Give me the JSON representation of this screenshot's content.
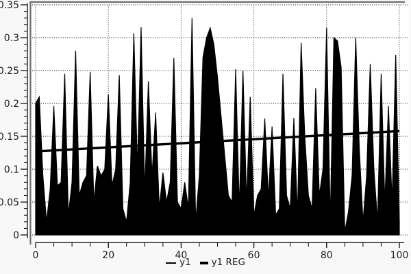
{
  "chart_data": {
    "type": "area",
    "title": "",
    "xlabel": "",
    "ylabel": "",
    "xlim": [
      0,
      100
    ],
    "ylim": [
      0,
      0.35
    ],
    "x_ticks_major": [
      0,
      20,
      40,
      60,
      80,
      100
    ],
    "x_tick_labels": [
      "0",
      "20",
      "40",
      "60",
      "80",
      "100"
    ],
    "x_tick_minor_step": 5,
    "y_ticks_major": [
      0,
      0.05,
      0.1,
      0.15,
      0.2,
      0.25,
      0.3,
      0.35
    ],
    "y_tick_labels": [
      "0",
      "0.05",
      "0.1",
      "0.15",
      "0.2",
      "0.25",
      "0.3",
      "0.35"
    ],
    "y_tick_minor_step": 0.01,
    "grid": "dotted",
    "legend_position": "bottom-center",
    "x_start": 0,
    "x_step": 1,
    "series": [
      {
        "name": "y1",
        "style": "thin-line-filled-area",
        "values": [
          0.2,
          0.21,
          0.09,
          0.02,
          0.07,
          0.196,
          0.075,
          0.08,
          0.245,
          0.03,
          0.08,
          0.28,
          0.06,
          0.08,
          0.09,
          0.248,
          0.05,
          0.105,
          0.09,
          0.1,
          0.214,
          0.075,
          0.1,
          0.243,
          0.04,
          0.02,
          0.08,
          0.307,
          0.1,
          0.316,
          0.065,
          0.234,
          0.09,
          0.186,
          0.04,
          0.095,
          0.05,
          0.08,
          0.269,
          0.05,
          0.04,
          0.08,
          0.04,
          0.33,
          0.02,
          0.09,
          0.27,
          0.3,
          0.315,
          0.29,
          0.24,
          0.18,
          0.12,
          0.06,
          0.05,
          0.252,
          0.04,
          0.25,
          0.05,
          0.21,
          0.03,
          0.06,
          0.07,
          0.177,
          0.055,
          0.165,
          0.03,
          0.04,
          0.245,
          0.06,
          0.04,
          0.178,
          0.03,
          0.292,
          0.15,
          0.06,
          0.04,
          0.223,
          0.06,
          0.1,
          0.315,
          0.02,
          0.3,
          0.295,
          0.255,
          0.005,
          0.035,
          0.09,
          0.3,
          0.13,
          0.02,
          0.09,
          0.26,
          0.1,
          0.02,
          0.245,
          0.05,
          0.196,
          0.05,
          0.274,
          0.02
        ]
      },
      {
        "name": "y1 REG",
        "style": "thick-trend-line",
        "trend": {
          "x_start": 0,
          "y_start": 0.127,
          "x_end": 100,
          "y_end": 0.158
        }
      }
    ],
    "colors": {
      "series": "#000000",
      "trend": "#000000",
      "grid": "#000000",
      "axis": "#000000",
      "frame": "#6e6e6e",
      "text": "#1a1a1a",
      "plot_bg": "#ffffff",
      "page_bg": "#f8f8f8"
    }
  },
  "legend": {
    "items": [
      {
        "label": "y1",
        "swatch": "thin-line"
      },
      {
        "label": "y1 REG",
        "swatch": "thick-line"
      }
    ]
  }
}
